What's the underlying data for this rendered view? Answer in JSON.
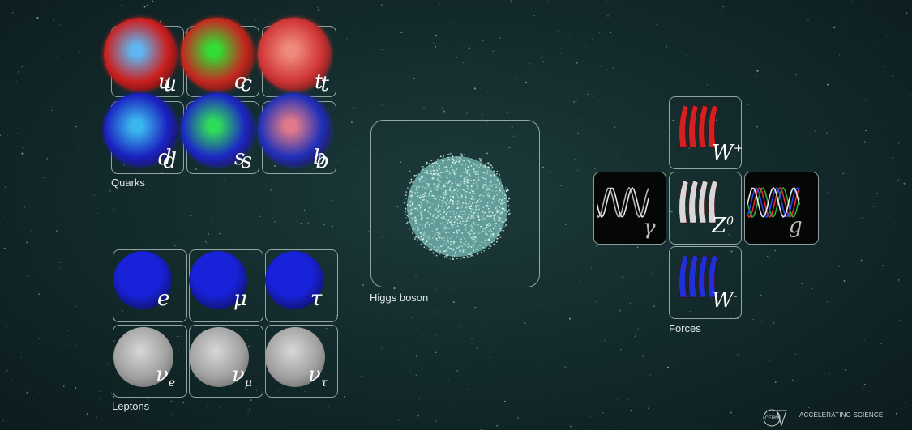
{
  "groups": {
    "quarks": {
      "label": "Quarks",
      "particles": [
        {
          "name": "up",
          "symbol": "u",
          "color": "#cc2020",
          "core": "#5fb6f0"
        },
        {
          "name": "charm",
          "symbol": "c",
          "color": "#c42a20",
          "core": "#33dd33"
        },
        {
          "name": "top",
          "symbol": "t",
          "color": "#cf3535",
          "core": "#f08a7c"
        },
        {
          "name": "down",
          "symbol": "d",
          "color": "#1a22c0",
          "core": "#3ab6ee"
        },
        {
          "name": "strange",
          "symbol": "s",
          "color": "#1c28c4",
          "core": "#2fdc5a"
        },
        {
          "name": "bottom",
          "symbol": "b",
          "color": "#2030b8",
          "core": "#e07a8a"
        }
      ]
    },
    "leptons": {
      "label": "Leptons",
      "particles": [
        {
          "name": "electron",
          "symbol": "e",
          "color": "#1822d8"
        },
        {
          "name": "muon",
          "symbol": "μ",
          "color": "#1822d8"
        },
        {
          "name": "tau",
          "symbol": "τ",
          "color": "#1822d8"
        },
        {
          "name": "electron-neutrino",
          "symbol": "ν",
          "sub": "e",
          "color": "#a8a8a8"
        },
        {
          "name": "muon-neutrino",
          "symbol": "ν",
          "sub": "μ",
          "color": "#a8a8a8"
        },
        {
          "name": "tau-neutrino",
          "symbol": "ν",
          "sub": "τ",
          "color": "#a8a8a8"
        }
      ]
    },
    "higgs": {
      "label": "Higgs boson",
      "color": "#9ef0ea"
    },
    "forces": {
      "label": "Forces",
      "bosons": [
        {
          "name": "w-plus",
          "symbol": "W",
          "sup": "+",
          "color": "#d42020",
          "dark": false
        },
        {
          "name": "photon",
          "symbol": "γ",
          "color": "#ffffff",
          "dark": true
        },
        {
          "name": "z-zero",
          "symbol": "Z",
          "sup": "0",
          "color": "#d8d8d8",
          "dark": false
        },
        {
          "name": "gluon",
          "symbol": "g",
          "color": "#3050ff",
          "dark": true
        },
        {
          "name": "w-minus",
          "symbol": "W",
          "sup": "-",
          "color": "#2030d8",
          "dark": false
        }
      ]
    }
  },
  "branding": {
    "logo_text": "CERN",
    "tagline": "ACCELERATING SCIENCE"
  }
}
